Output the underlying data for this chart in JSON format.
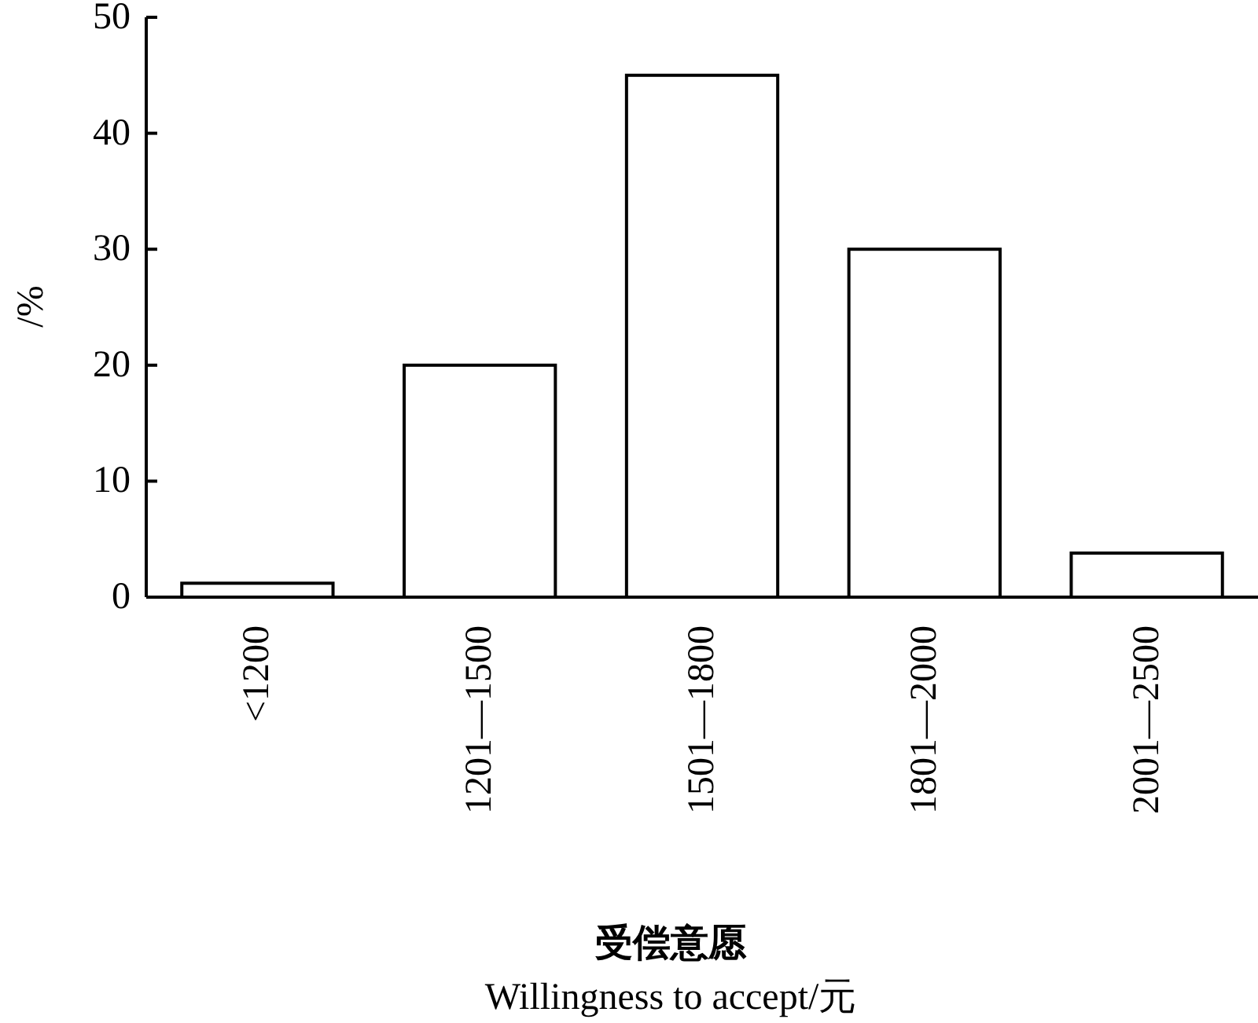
{
  "chart_data": {
    "type": "bar",
    "ylabel": "/%",
    "xlabel": "**受偿意愿**\nWillingness to accept/元",
    "categories": [
      "<1200",
      "1201—1500",
      "1501—1800",
      "1801—2000",
      "2001—2500"
    ],
    "values": [
      1.2,
      20,
      45,
      30,
      3.8
    ],
    "color": "#ffffff",
    "ylim": [
      0,
      50
    ],
    "yticks": [
      0,
      10,
      20,
      30,
      40,
      50
    ],
    "grid": false
  }
}
